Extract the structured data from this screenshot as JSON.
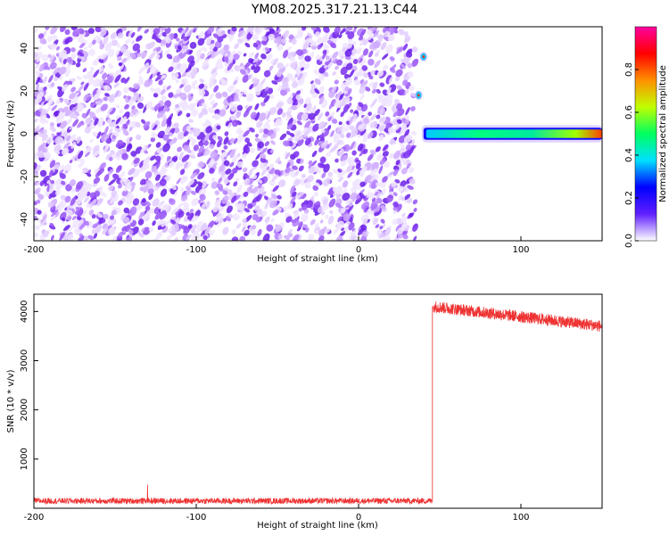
{
  "figure_title": "YM08.2025.317.21.13.C44",
  "chart_data": [
    {
      "type": "heatmap",
      "name": "spectrogram",
      "xlabel": "Height of straight line (km)",
      "ylabel": "Frequency (Hz)",
      "xlim": [
        -200,
        150
      ],
      "ylim": [
        -50,
        50
      ],
      "xticks": [
        -200,
        -100,
        0,
        100
      ],
      "yticks": [
        -40,
        -20,
        0,
        20,
        40
      ],
      "noise_region_x": [
        -200,
        35
      ],
      "signal_onset_x": 40,
      "signal_band_hz": [
        -2,
        2
      ],
      "signal_spots": [
        {
          "x": 40,
          "y": 36
        },
        {
          "x": 37,
          "y": 18
        }
      ],
      "colorbar": {
        "label": "Normalized spectral amplitude",
        "range": [
          0,
          1
        ],
        "ticks": [
          "0.0",
          "0.2",
          "0.4",
          "0.6",
          "0.8"
        ],
        "tick_values": [
          0.0,
          0.2,
          0.4,
          0.6,
          0.8
        ],
        "colors": [
          "#ffffff",
          "#6020ff",
          "#0000ff",
          "#00e0ff",
          "#00ff60",
          "#c0ff00",
          "#ff9000",
          "#ff0000",
          "#ff00a0"
        ]
      }
    },
    {
      "type": "line",
      "name": "snr",
      "xlabel": "Height of straight line (km)",
      "ylabel": "SNR (10 * v/v)",
      "xlim": [
        -200,
        150
      ],
      "ylim": [
        0,
        4350
      ],
      "xticks": [
        -200,
        -100,
        0,
        100
      ],
      "yticks": [
        1000,
        2000,
        3000,
        4000
      ],
      "color": "#ee3333",
      "segments": [
        {
          "x_range": [
            -200,
            45
          ],
          "level": 150,
          "noise": 60
        },
        {
          "x_range": [
            46,
            150
          ],
          "level_start": 4100,
          "level_end": 3700,
          "noise": 120
        }
      ],
      "step_x": 45.5,
      "spike": {
        "x": -130,
        "y": 480
      }
    }
  ]
}
